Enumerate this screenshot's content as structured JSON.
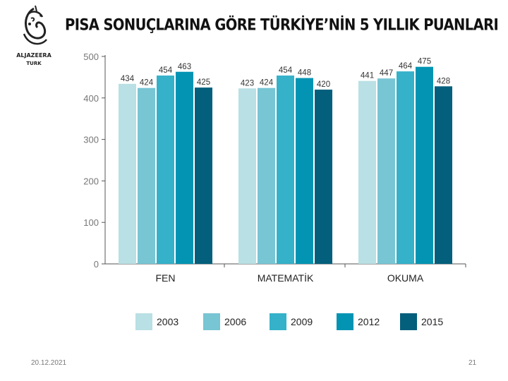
{
  "logo": {
    "name": "ALJAZEERA",
    "sub": "TURK"
  },
  "title": "PISA SONUÇLARINA GÖRE TÜRKİYE’NİN 5 YILLIK PUANLARI",
  "footer": {
    "date": "20.12.2021",
    "page": "21"
  },
  "chart_data": {
    "type": "bar",
    "title": "",
    "categories": [
      "FEN",
      "MATEMATİK",
      "OKUMA"
    ],
    "series": [
      {
        "name": "2003",
        "color": "#b9e0e4",
        "values": [
          434,
          423,
          441
        ]
      },
      {
        "name": "2006",
        "color": "#78c5d4",
        "values": [
          424,
          424,
          447
        ]
      },
      {
        "name": "2009",
        "color": "#35b1c9",
        "values": [
          454,
          454,
          464
        ]
      },
      {
        "name": "2012",
        "color": "#0494b3",
        "values": [
          463,
          448,
          475
        ]
      },
      {
        "name": "2015",
        "color": "#035f7c",
        "values": [
          425,
          420,
          428
        ]
      }
    ],
    "ylim": [
      0,
      500
    ],
    "yticks": [
      0,
      100,
      200,
      300,
      400,
      500
    ],
    "grid": false,
    "legend": "bottom"
  }
}
